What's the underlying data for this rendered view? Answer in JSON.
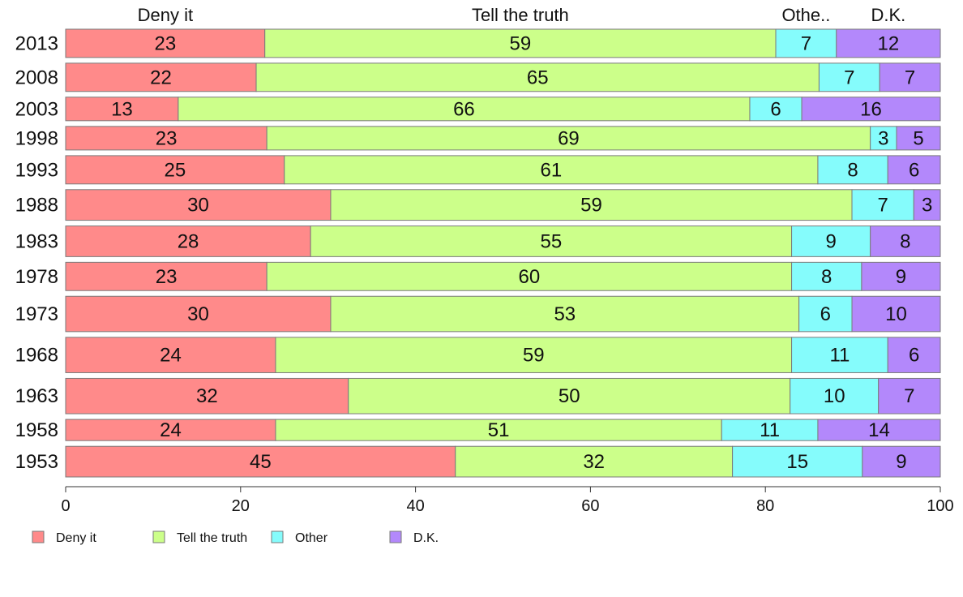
{
  "chart_data": {
    "type": "bar",
    "orientation": "horizontal",
    "stacked": true,
    "categories": [
      "2013",
      "2008",
      "2003",
      "1998",
      "1993",
      "1988",
      "1983",
      "1978",
      "1973",
      "1968",
      "1963",
      "1958",
      "1953"
    ],
    "row_weights": [
      12,
      12,
      10,
      10,
      12,
      13,
      13,
      12,
      15,
      15,
      15,
      9,
      13
    ],
    "series": [
      {
        "name": "Deny it",
        "color": "#ff8a8a",
        "values": [
          23,
          22,
          13,
          23,
          25,
          30,
          28,
          23,
          30,
          24,
          32,
          24,
          45
        ]
      },
      {
        "name": "Tell the truth",
        "color": "#ccff8a",
        "values": [
          59,
          65,
          66,
          69,
          61,
          59,
          55,
          60,
          53,
          59,
          50,
          51,
          32
        ]
      },
      {
        "name": "Other",
        "color": "#85fcfc",
        "values": [
          7,
          7,
          6,
          3,
          8,
          7,
          9,
          8,
          6,
          11,
          10,
          11,
          15
        ]
      },
      {
        "name": "D.K.",
        "color": "#b388fb",
        "values": [
          12,
          7,
          16,
          5,
          6,
          3,
          8,
          9,
          10,
          6,
          7,
          14,
          9
        ]
      }
    ],
    "top_labels": [
      "Deny it",
      "Tell the truth",
      "Othe..",
      "D.K."
    ],
    "xlim": [
      0,
      100
    ],
    "xticks": [
      0,
      20,
      40,
      60,
      80,
      100
    ],
    "grid": false,
    "legend_position": "bottom-left"
  }
}
